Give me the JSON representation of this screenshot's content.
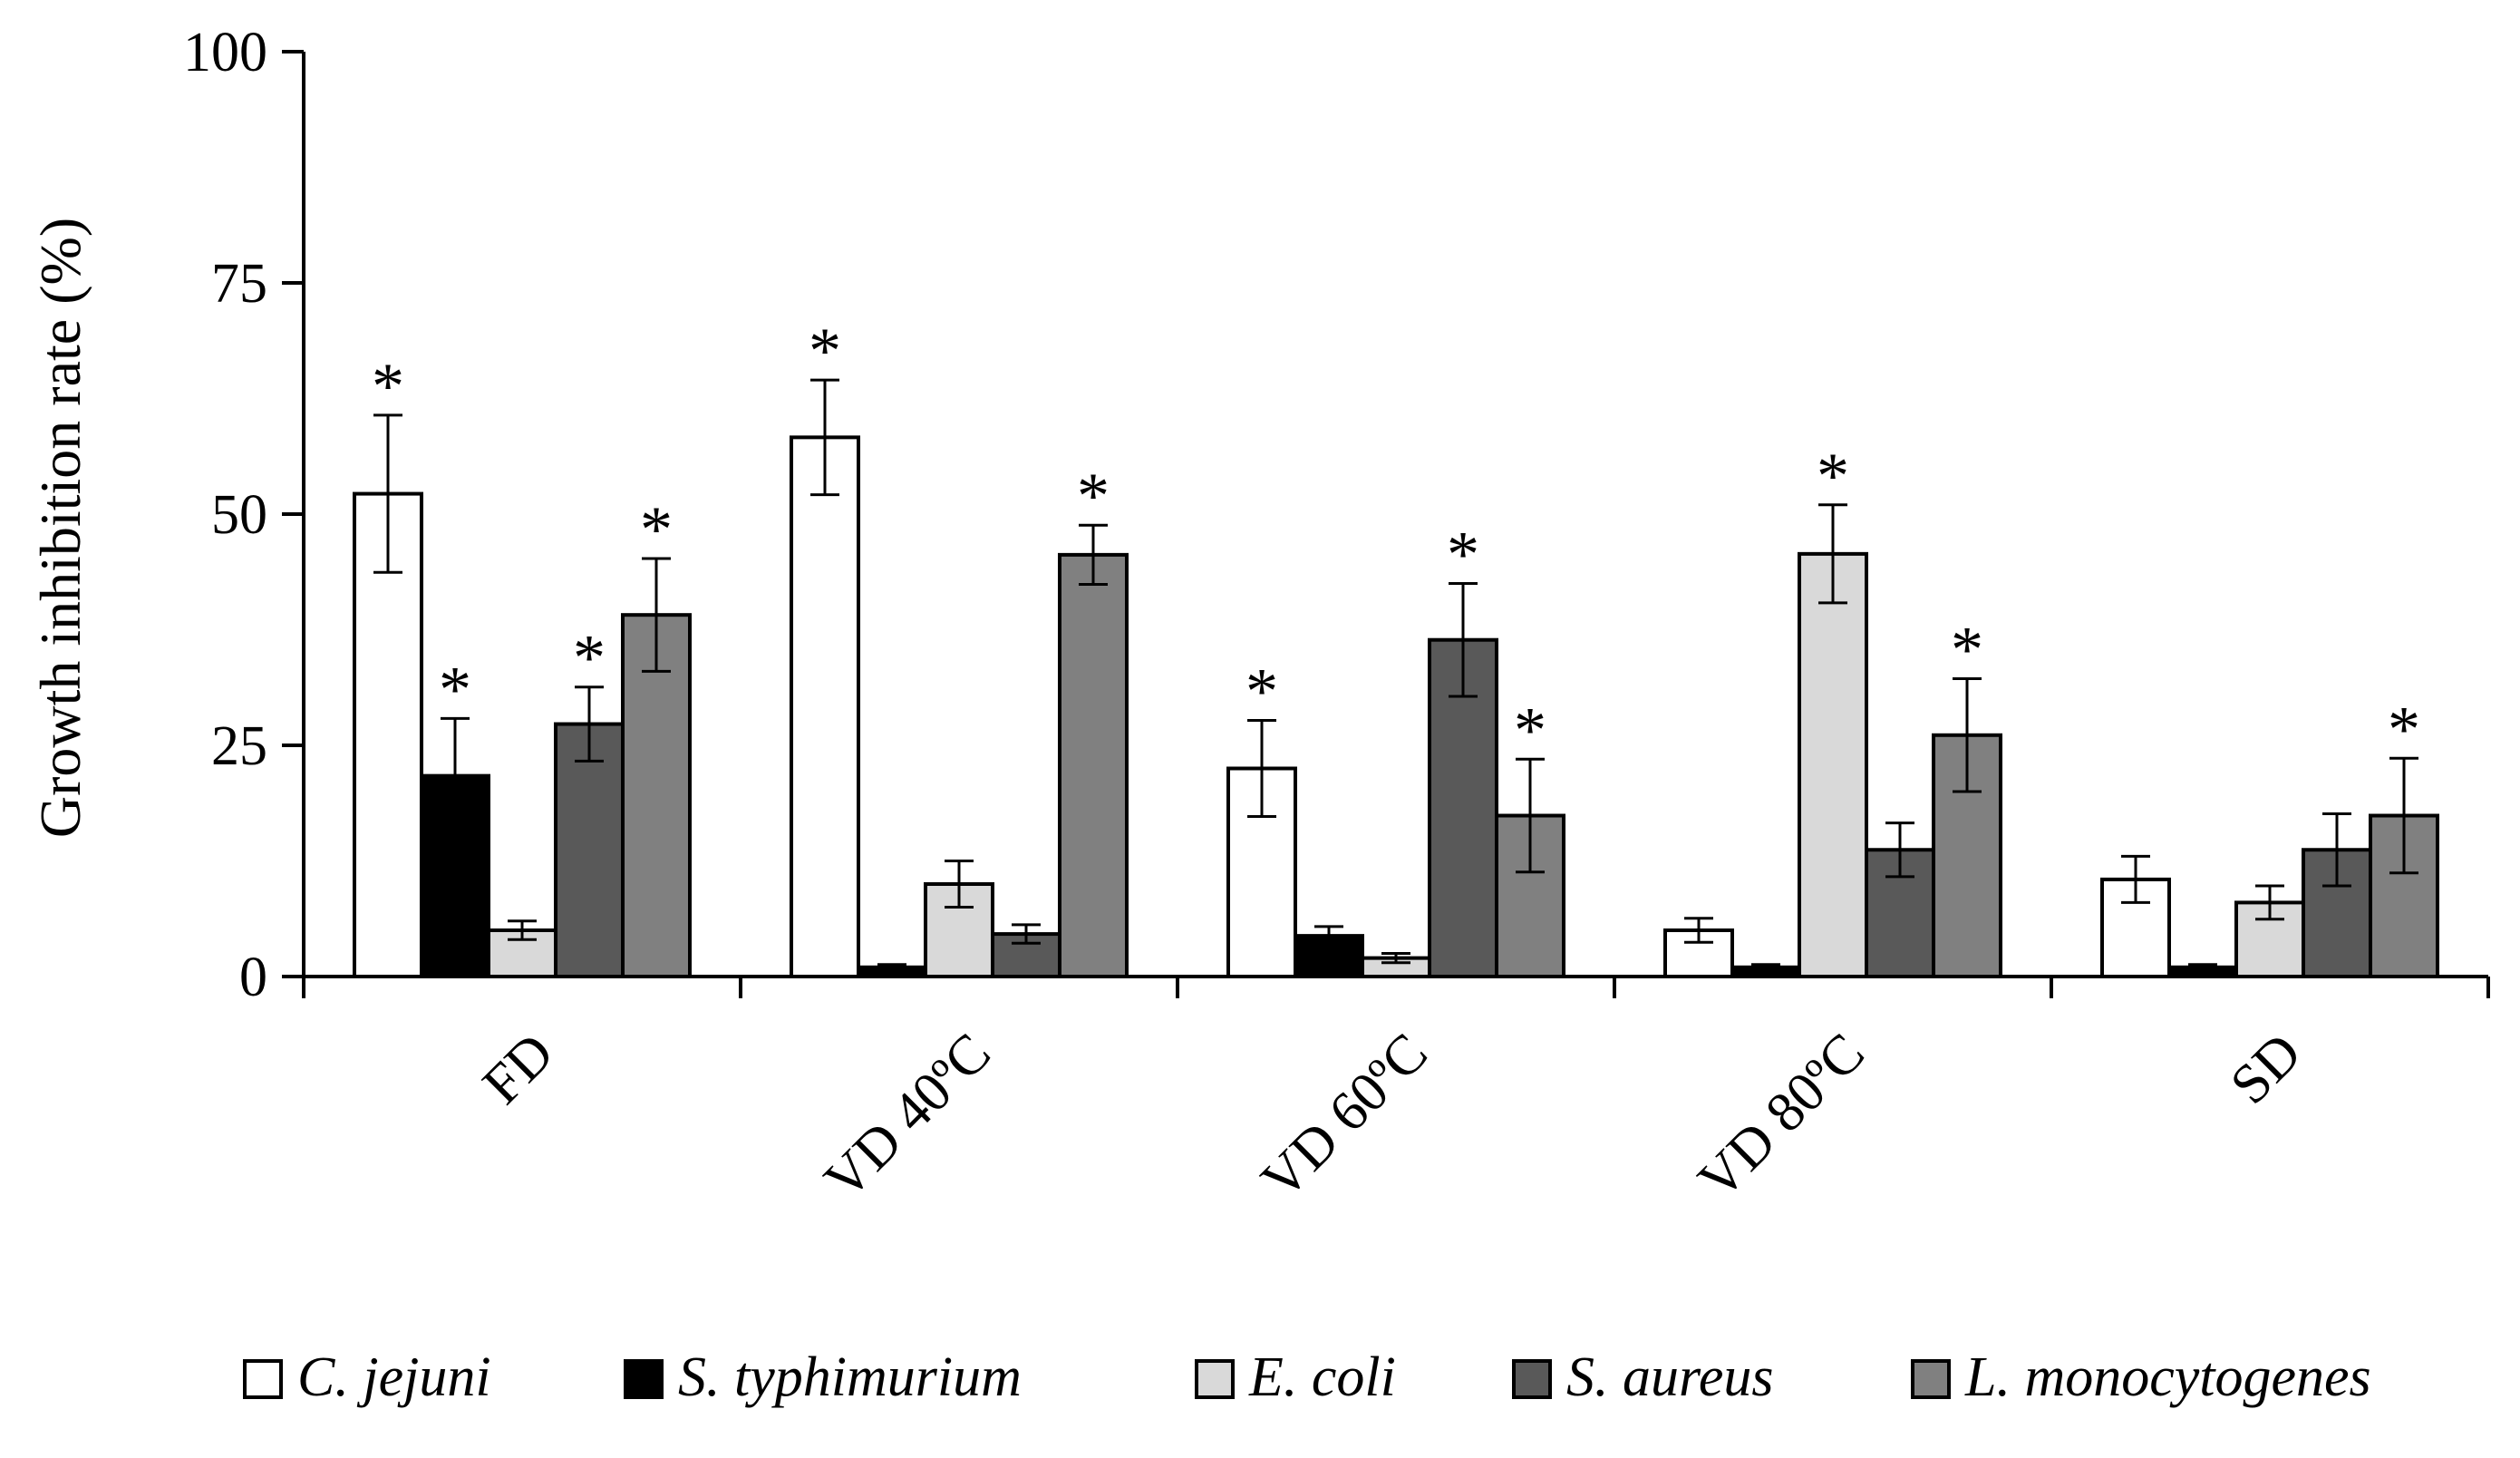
{
  "chart_data": {
    "type": "bar",
    "ylabel": "Growth inhibition rate (%)",
    "ylim": [
      0,
      100
    ],
    "yticks": [
      "0",
      "25",
      "50",
      "75",
      "100"
    ],
    "categories": [
      "FD",
      "VD 40ºC",
      "VD 60ºC",
      "VD 80ºC",
      "SD"
    ],
    "series": [
      {
        "name": "C. jejuni",
        "color": "#ffffff",
        "values": [
          52.2,
          58.3,
          22.5,
          5.0,
          10.5
        ],
        "errors": [
          8.5,
          6.2,
          5.2,
          1.3,
          2.5
        ],
        "significant": [
          true,
          true,
          true,
          false,
          false
        ]
      },
      {
        "name": "S. typhimurium",
        "color": "#000000",
        "values": [
          21.7,
          1.0,
          4.4,
          1.0,
          1.0
        ],
        "errors": [
          6.2,
          0.3,
          1.0,
          0.3,
          0.3
        ],
        "significant": [
          true,
          false,
          false,
          false,
          false
        ]
      },
      {
        "name": "E. coli",
        "color": "#d9d9d9",
        "values": [
          5.0,
          10.0,
          2.0,
          45.7,
          8.0
        ],
        "errors": [
          1.0,
          2.5,
          0.5,
          5.3,
          1.8
        ],
        "significant": [
          false,
          false,
          false,
          true,
          false
        ]
      },
      {
        "name": "S. aureus",
        "color": "#595959",
        "values": [
          27.3,
          4.6,
          36.4,
          13.7,
          13.7
        ],
        "errors": [
          4.0,
          1.0,
          6.1,
          2.9,
          3.9
        ],
        "significant": [
          true,
          false,
          true,
          false,
          false
        ]
      },
      {
        "name": "L. monocytogenes",
        "color": "#808080",
        "values": [
          39.1,
          45.6,
          17.4,
          26.1,
          17.4
        ],
        "errors": [
          6.1,
          3.2,
          6.1,
          6.1,
          6.2
        ],
        "significant": [
          true,
          true,
          true,
          true,
          true
        ]
      }
    ],
    "significance_marker": "*",
    "legend": "bottom",
    "grid": false
  }
}
